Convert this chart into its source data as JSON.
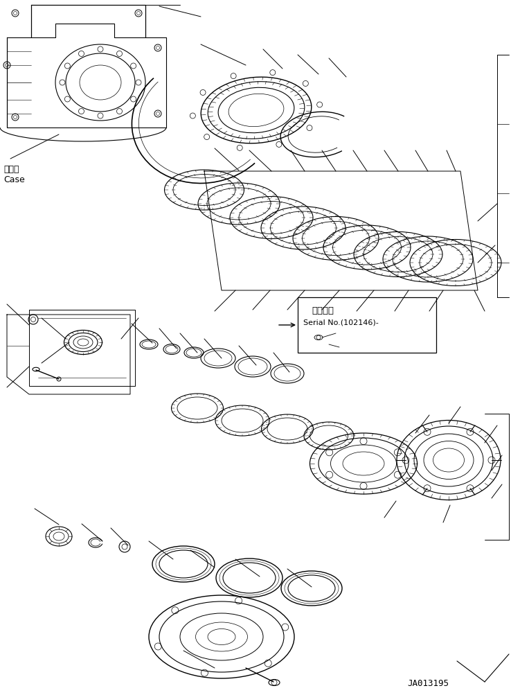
{
  "part_number": "JA013195",
  "bg_color": "#ffffff",
  "line_color": "#000000",
  "label_case_jp": "ケース",
  "label_case_en": "Case",
  "label_serial_jp": "適用号機",
  "label_serial_en": "Serial No.(102146)-",
  "fig_width": 7.38,
  "fig_height": 10.04,
  "dpi": 100
}
